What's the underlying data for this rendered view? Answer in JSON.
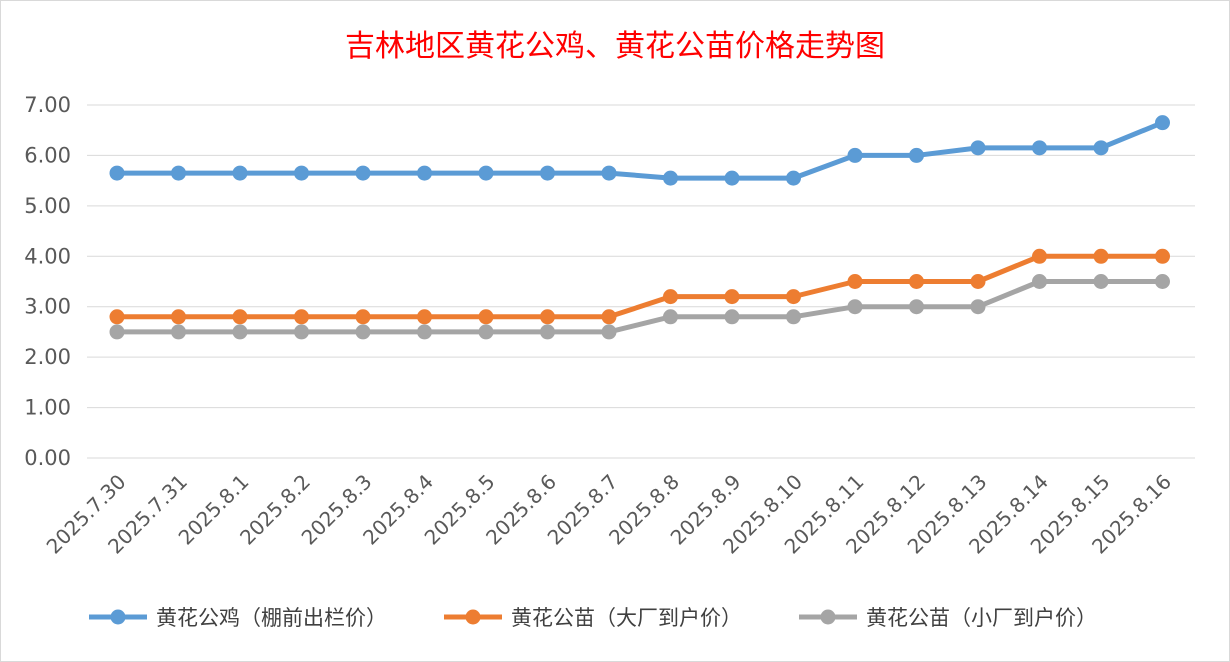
{
  "chart_data": {
    "type": "line",
    "title": "吉林地区黄花公鸡、黄花公苗价格走势图",
    "x": [
      "2025.7.30",
      "2025.7.31",
      "2025.8.1",
      "2025.8.2",
      "2025.8.3",
      "2025.8.4",
      "2025.8.5",
      "2025.8.6",
      "2025.8.7",
      "2025.8.8",
      "2025.8.9",
      "2025.8.10",
      "2025.8.11",
      "2025.8.12",
      "2025.8.13",
      "2025.8.14",
      "2025.8.15",
      "2025.8.16"
    ],
    "ylim": [
      0,
      7
    ],
    "yticks": [
      "0.00",
      "1.00",
      "2.00",
      "3.00",
      "4.00",
      "5.00",
      "6.00",
      "7.00"
    ],
    "grid": true,
    "legend_position": "bottom",
    "series": [
      {
        "name": "黄花公鸡（棚前出栏价）",
        "color": "#5b9bd5",
        "values": [
          5.65,
          5.65,
          5.65,
          5.65,
          5.65,
          5.65,
          5.65,
          5.65,
          5.65,
          5.55,
          5.55,
          5.55,
          6.0,
          6.0,
          6.15,
          6.15,
          6.15,
          6.65
        ]
      },
      {
        "name": "黄花公苗（大厂到户价）",
        "color": "#ed7d31",
        "values": [
          2.8,
          2.8,
          2.8,
          2.8,
          2.8,
          2.8,
          2.8,
          2.8,
          2.8,
          3.2,
          3.2,
          3.2,
          3.5,
          3.5,
          3.5,
          4.0,
          4.0,
          4.0
        ]
      },
      {
        "name": "黄花公苗（小厂到户价）",
        "color": "#a5a5a5",
        "values": [
          2.5,
          2.5,
          2.5,
          2.5,
          2.5,
          2.5,
          2.5,
          2.5,
          2.5,
          2.8,
          2.8,
          2.8,
          3.0,
          3.0,
          3.0,
          3.5,
          3.5,
          3.5
        ]
      }
    ]
  }
}
